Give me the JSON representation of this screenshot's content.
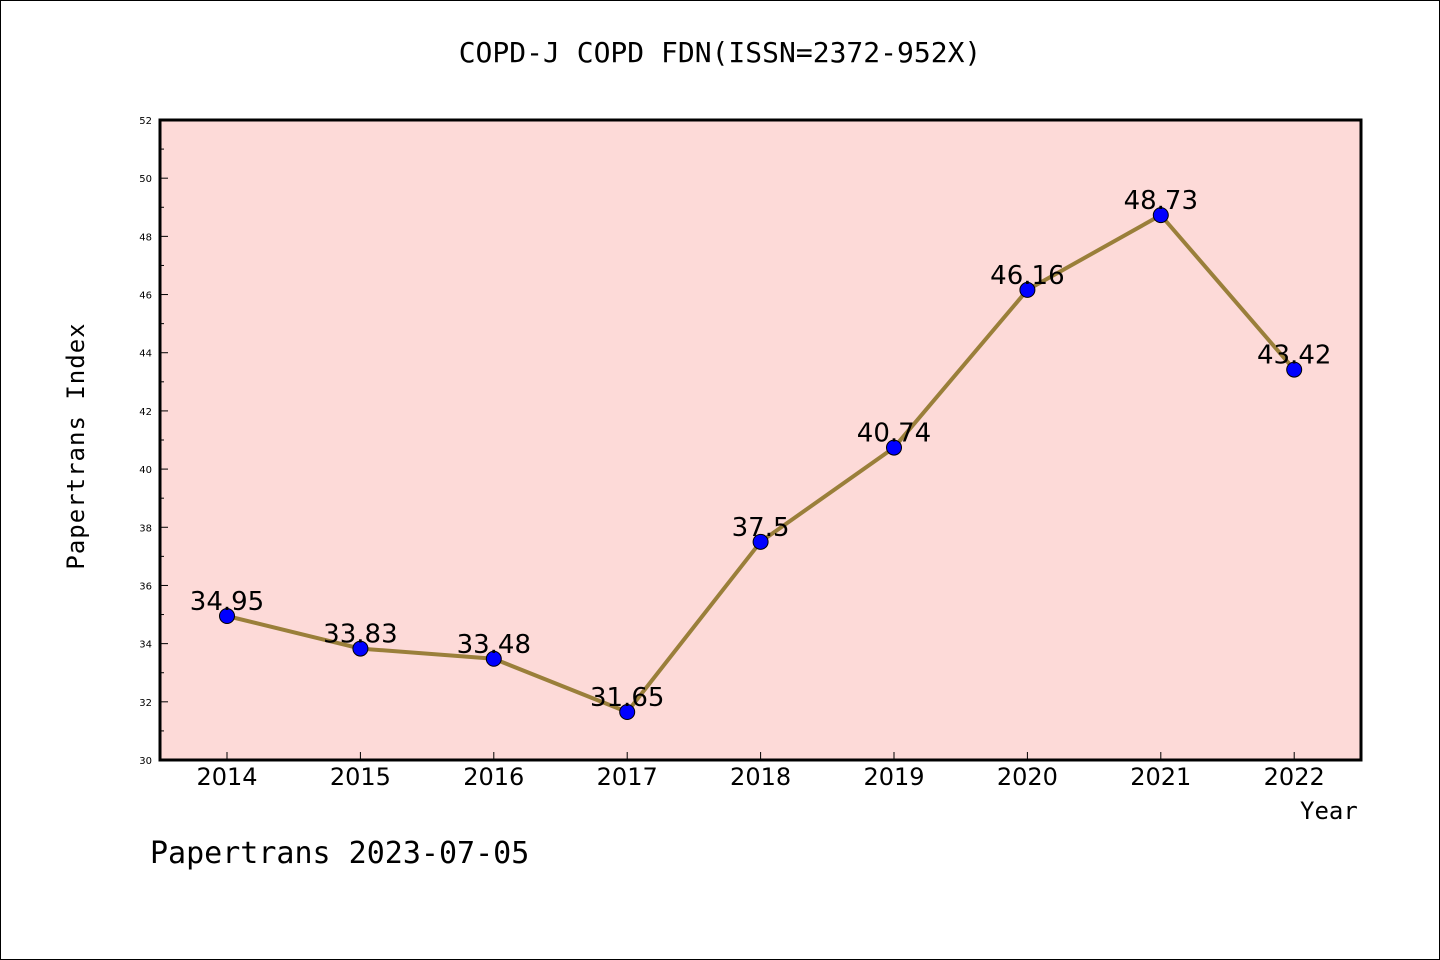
{
  "title": "COPD-J COPD FDN(ISSN=2372-952X)",
  "footer": "Papertrans 2023-07-05",
  "colors": {
    "plot_background": "#FDDAD8",
    "line": "#9A7F3A",
    "marker": "#0000FF"
  },
  "chart_data": {
    "type": "line",
    "title": "COPD-J COPD FDN(ISSN=2372-952X)",
    "xlabel": "Year",
    "ylabel": "Papertrans Index",
    "categories": [
      "2014",
      "2015",
      "2016",
      "2017",
      "2018",
      "2019",
      "2020",
      "2021",
      "2022"
    ],
    "values": [
      34.95,
      33.83,
      33.48,
      31.65,
      37.5,
      40.74,
      46.16,
      48.73,
      43.42
    ],
    "data_labels": [
      "34.95",
      "33.83",
      "33.48",
      "31.65",
      "37.5",
      "40.74",
      "46.16",
      "48.73",
      "43.42"
    ],
    "ylim": [
      30,
      52
    ],
    "yticks": [
      30,
      32,
      34,
      36,
      38,
      40,
      42,
      44,
      46,
      48,
      50,
      52
    ],
    "grid": false,
    "legend": "none"
  }
}
